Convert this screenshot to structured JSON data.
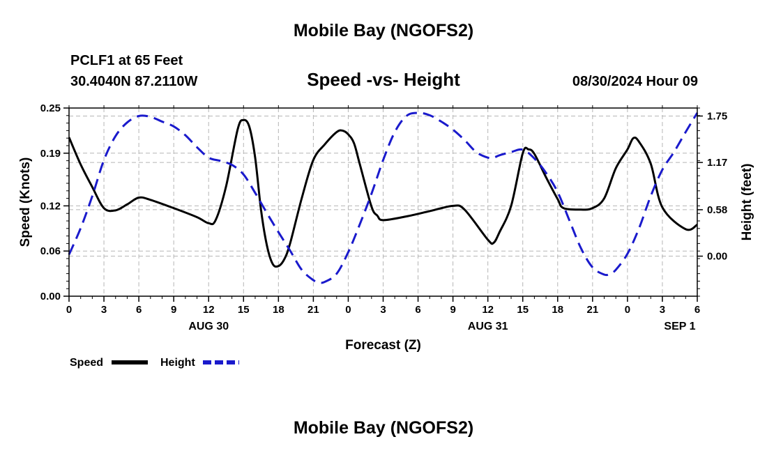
{
  "header": {
    "title": "Mobile Bay (NGOFS2)",
    "station": "PCLF1 at 65 Feet",
    "coords": "30.4040N  87.2110W",
    "subtitle": "Speed -vs- Height",
    "datetime": "08/30/2024 Hour 09"
  },
  "footer": {
    "title": "Mobile Bay (NGOFS2)"
  },
  "chart_data": {
    "type": "line",
    "xlabel": "Forecast (Z)",
    "ylabel": "Speed (Knots)",
    "ylabel_right": "Height (feet)",
    "xlim": [
      0,
      54
    ],
    "ylim": [
      0.0,
      0.25
    ],
    "ylim_right": [
      -0.5,
      1.85
    ],
    "grid": true,
    "x_ticks": [
      0,
      3,
      6,
      9,
      12,
      15,
      18,
      21,
      24,
      27,
      30,
      33,
      36,
      39,
      42,
      45,
      48,
      51,
      54
    ],
    "x_tick_labels": [
      "0",
      "3",
      "6",
      "9",
      "12",
      "15",
      "18",
      "21",
      "0",
      "3",
      "6",
      "9",
      "12",
      "15",
      "18",
      "21",
      "0",
      "3",
      "6"
    ],
    "date_labels": [
      {
        "x": 12,
        "label": "AUG 30"
      },
      {
        "x": 36,
        "label": "AUG 31"
      },
      {
        "x": 52.5,
        "label": "SEP 1"
      }
    ],
    "y_ticks": [
      0.0,
      0.06,
      0.12,
      0.19,
      0.25
    ],
    "y_tick_labels": [
      "0.00",
      "0.06",
      "0.12",
      "0.19",
      "0.25"
    ],
    "y_ticks_right": [
      0.0,
      0.58,
      1.17,
      1.75
    ],
    "y_tick_labels_right": [
      "0.00",
      "0.58",
      "1.17",
      "1.75"
    ],
    "legend": [
      {
        "name": "Speed",
        "color": "#000000",
        "dash": "solid"
      },
      {
        "name": "Height",
        "color": "#1a1acc",
        "dash": "dashed"
      }
    ],
    "series": [
      {
        "name": "Speed",
        "axis": "left",
        "color": "#000000",
        "x": [
          0,
          1,
          2,
          3,
          4,
          5,
          6,
          7,
          9,
          11,
          12,
          12.6,
          13.5,
          14.5,
          15,
          15.5,
          16,
          16.5,
          17,
          17.5,
          18,
          18.5,
          19,
          20,
          21,
          22,
          23,
          23.5,
          24,
          24.5,
          25,
          26,
          26.5,
          27,
          29,
          31,
          33,
          34,
          36,
          36.5,
          37,
          38,
          39,
          39.5,
          40,
          41,
          42,
          42.5,
          44,
          45,
          46,
          47,
          48,
          48.5,
          49,
          50,
          51,
          53,
          54
        ],
        "y": [
          0.211,
          0.175,
          0.145,
          0.117,
          0.114,
          0.122,
          0.131,
          0.128,
          0.117,
          0.105,
          0.097,
          0.101,
          0.146,
          0.222,
          0.234,
          0.225,
          0.184,
          0.115,
          0.068,
          0.043,
          0.04,
          0.049,
          0.07,
          0.13,
          0.181,
          0.202,
          0.218,
          0.22,
          0.215,
          0.203,
          0.175,
          0.119,
          0.107,
          0.101,
          0.106,
          0.113,
          0.12,
          0.115,
          0.075,
          0.071,
          0.085,
          0.12,
          0.19,
          0.195,
          0.189,
          0.158,
          0.129,
          0.117,
          0.115,
          0.117,
          0.13,
          0.17,
          0.195,
          0.21,
          0.205,
          0.176,
          0.118,
          0.089,
          0.095
        ]
      },
      {
        "name": "Height",
        "axis": "right",
        "color": "#1a1acc",
        "x": [
          0,
          1,
          2,
          3,
          4,
          5,
          6,
          7,
          8,
          9,
          10,
          11,
          12,
          13,
          14,
          15,
          16,
          17,
          18,
          19,
          20,
          21,
          21.5,
          22,
          23,
          24,
          25,
          26,
          27,
          28,
          29,
          30,
          31,
          32,
          33,
          34,
          35,
          36,
          36.5,
          37,
          38,
          39,
          40,
          41,
          42,
          43,
          44,
          45,
          46,
          46.5,
          47,
          48,
          49,
          50,
          51,
          52,
          53,
          54
        ],
        "y": [
          0.02,
          0.35,
          0.75,
          1.2,
          1.5,
          1.67,
          1.75,
          1.74,
          1.68,
          1.62,
          1.51,
          1.36,
          1.23,
          1.19,
          1.14,
          1.02,
          0.79,
          0.54,
          0.3,
          0.07,
          -0.17,
          -0.3,
          -0.33,
          -0.32,
          -0.22,
          0.05,
          0.4,
          0.78,
          1.2,
          1.55,
          1.75,
          1.79,
          1.76,
          1.68,
          1.58,
          1.45,
          1.3,
          1.23,
          1.23,
          1.26,
          1.3,
          1.33,
          1.22,
          1.04,
          0.8,
          0.45,
          0.1,
          -0.14,
          -0.23,
          -0.22,
          -0.17,
          0.03,
          0.35,
          0.75,
          1.08,
          1.3,
          1.55,
          1.79
        ]
      }
    ]
  }
}
